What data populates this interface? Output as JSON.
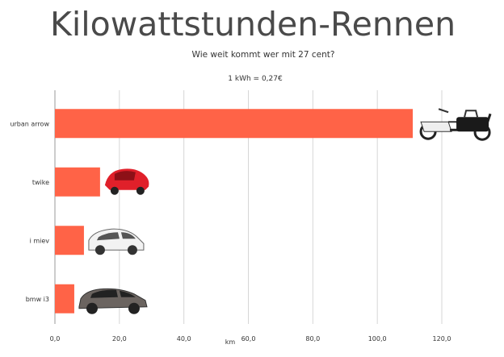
{
  "chart_data": {
    "type": "bar",
    "orientation": "horizontal",
    "title": "Kilowattstunden-Rennen",
    "subtitle": "Wie weit kommt wer mit 27 cent?",
    "note": "1 kWh = 0,27€",
    "xlabel": "km",
    "categories": [
      "urban arrow",
      "twike",
      "i miev",
      "bmw i3"
    ],
    "values": [
      111,
      14,
      9,
      6
    ],
    "xlim": [
      0,
      120
    ],
    "xticks": [
      "0,0",
      "20,0",
      "40,0",
      "60,0",
      "80,0",
      "100,0",
      "120,0"
    ],
    "grid": "vertical",
    "legend": "none",
    "bar_color": "#FF6347",
    "icons": [
      "cargo-bike-icon",
      "twike-car-icon",
      "i-miev-car-icon",
      "bmw-i3-car-icon"
    ]
  }
}
